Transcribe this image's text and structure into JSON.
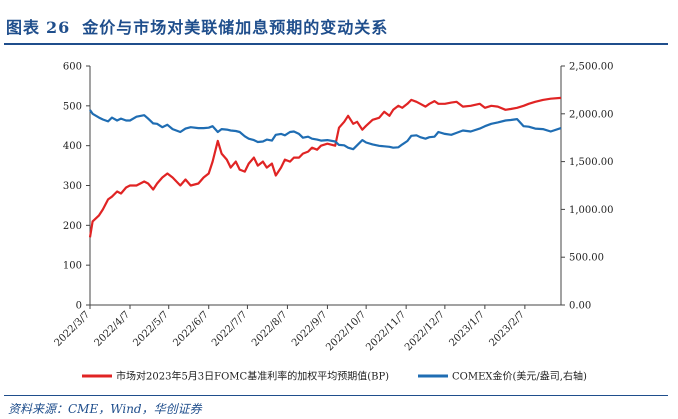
{
  "title": {
    "prefix": "图表",
    "number": "26",
    "text": "金价与市场对美联储加息预期的变动关系"
  },
  "source": "资料来源：CME，Wind，华创证券",
  "colors": {
    "brand": "#1f4e8c",
    "series_rate": "#e02424",
    "series_gold": "#1f6db3"
  },
  "chart_data": {
    "type": "line",
    "x_tick_labels": [
      "2022/3/7",
      "2022/4/7",
      "2022/5/7",
      "2022/6/7",
      "2022/7/7",
      "2022/8/7",
      "2022/9/7",
      "2022/10/7",
      "2022/11/7",
      "2022/12/7",
      "2023/1/7",
      "2023/2/7"
    ],
    "x_range": [
      "2022/3/7",
      "2023/3/7"
    ],
    "left_axis": {
      "min": 0,
      "max": 600,
      "ticks": [
        "0",
        "100",
        "200",
        "300",
        "400",
        "500",
        "600"
      ]
    },
    "right_axis": {
      "min": 0,
      "max": 2500,
      "ticks": [
        "0.00",
        "500.00",
        "1,000.00",
        "1,500.00",
        "2,000.00",
        "2,500.00"
      ]
    },
    "legend_position": "bottom",
    "grid": false,
    "series": [
      {
        "name": "市场对2023年5月3日FOMC基准利率的加权平均预期值(BP)",
        "axis": "left",
        "points": [
          [
            "2022/3/7",
            170
          ],
          [
            "2022/3/9",
            210
          ],
          [
            "2022/3/14",
            225
          ],
          [
            "2022/3/17",
            240
          ],
          [
            "2022/3/21",
            265
          ],
          [
            "2022/3/24",
            272
          ],
          [
            "2022/3/28",
            285
          ],
          [
            "2022/3/31",
            280
          ],
          [
            "2022/4/4",
            295
          ],
          [
            "2022/4/7",
            300
          ],
          [
            "2022/4/12",
            300
          ],
          [
            "2022/4/18",
            310
          ],
          [
            "2022/4/21",
            305
          ],
          [
            "2022/4/25",
            290
          ],
          [
            "2022/4/28",
            305
          ],
          [
            "2022/5/2",
            320
          ],
          [
            "2022/5/6",
            330
          ],
          [
            "2022/5/10",
            320
          ],
          [
            "2022/5/16",
            300
          ],
          [
            "2022/5/20",
            315
          ],
          [
            "2022/5/24",
            300
          ],
          [
            "2022/5/30",
            305
          ],
          [
            "2022/6/3",
            320
          ],
          [
            "2022/6/7",
            330
          ],
          [
            "2022/6/10",
            360
          ],
          [
            "2022/6/14",
            412
          ],
          [
            "2022/6/17",
            380
          ],
          [
            "2022/6/21",
            365
          ],
          [
            "2022/6/24",
            345
          ],
          [
            "2022/6/28",
            360
          ],
          [
            "2022/7/1",
            340
          ],
          [
            "2022/7/5",
            335
          ],
          [
            "2022/7/8",
            355
          ],
          [
            "2022/7/12",
            370
          ],
          [
            "2022/7/15",
            350
          ],
          [
            "2022/7/19",
            360
          ],
          [
            "2022/7/22",
            345
          ],
          [
            "2022/7/26",
            355
          ],
          [
            "2022/7/29",
            325
          ],
          [
            "2022/8/2",
            345
          ],
          [
            "2022/8/5",
            365
          ],
          [
            "2022/8/9",
            360
          ],
          [
            "2022/8/12",
            370
          ],
          [
            "2022/8/16",
            370
          ],
          [
            "2022/8/19",
            380
          ],
          [
            "2022/8/23",
            385
          ],
          [
            "2022/8/26",
            395
          ],
          [
            "2022/8/30",
            390
          ],
          [
            "2022/9/2",
            400
          ],
          [
            "2022/9/7",
            405
          ],
          [
            "2022/9/13",
            400
          ],
          [
            "2022/9/16",
            445
          ],
          [
            "2022/9/20",
            460
          ],
          [
            "2022/9/23",
            475
          ],
          [
            "2022/9/27",
            455
          ],
          [
            "2022/9/30",
            460
          ],
          [
            "2022/10/4",
            440
          ],
          [
            "2022/10/7",
            450
          ],
          [
            "2022/10/12",
            465
          ],
          [
            "2022/10/17",
            470
          ],
          [
            "2022/10/21",
            485
          ],
          [
            "2022/10/25",
            475
          ],
          [
            "2022/10/28",
            490
          ],
          [
            "2022/11/1",
            500
          ],
          [
            "2022/11/4",
            495
          ],
          [
            "2022/11/8",
            505
          ],
          [
            "2022/11/11",
            515
          ],
          [
            "2022/11/15",
            510
          ],
          [
            "2022/11/18",
            505
          ],
          [
            "2022/11/22",
            498
          ],
          [
            "2022/11/25",
            505
          ],
          [
            "2022/11/29",
            512
          ],
          [
            "2022/12/2",
            505
          ],
          [
            "2022/12/7",
            505
          ],
          [
            "2022/12/12",
            508
          ],
          [
            "2022/12/16",
            510
          ],
          [
            "2022/12/21",
            498
          ],
          [
            "2022/12/27",
            500
          ],
          [
            "2023/1/3",
            505
          ],
          [
            "2023/1/7",
            495
          ],
          [
            "2023/1/12",
            500
          ],
          [
            "2023/1/17",
            498
          ],
          [
            "2023/1/23",
            490
          ],
          [
            "2023/1/27",
            492
          ],
          [
            "2023/2/1",
            495
          ],
          [
            "2023/2/6",
            500
          ],
          [
            "2023/2/10",
            505
          ],
          [
            "2023/2/15",
            510
          ],
          [
            "2023/2/21",
            515
          ],
          [
            "2023/2/27",
            518
          ],
          [
            "2023/3/7",
            520
          ]
        ]
      },
      {
        "name": "COMEX金价(美元/盎司,右轴)",
        "axis": "right",
        "points": [
          [
            "2022/3/7",
            2040
          ],
          [
            "2022/3/9",
            2000
          ],
          [
            "2022/3/14",
            1960
          ],
          [
            "2022/3/17",
            1940
          ],
          [
            "2022/3/21",
            1920
          ],
          [
            "2022/3/24",
            1960
          ],
          [
            "2022/3/28",
            1930
          ],
          [
            "2022/3/31",
            1950
          ],
          [
            "2022/4/4",
            1930
          ],
          [
            "2022/4/7",
            1930
          ],
          [
            "2022/4/12",
            1970
          ],
          [
            "2022/4/18",
            1985
          ],
          [
            "2022/4/21",
            1950
          ],
          [
            "2022/4/25",
            1900
          ],
          [
            "2022/4/28",
            1895
          ],
          [
            "2022/5/2",
            1860
          ],
          [
            "2022/5/6",
            1885
          ],
          [
            "2022/5/10",
            1840
          ],
          [
            "2022/5/16",
            1810
          ],
          [
            "2022/5/20",
            1845
          ],
          [
            "2022/5/24",
            1860
          ],
          [
            "2022/5/30",
            1850
          ],
          [
            "2022/6/3",
            1850
          ],
          [
            "2022/6/7",
            1855
          ],
          [
            "2022/6/10",
            1870
          ],
          [
            "2022/6/14",
            1810
          ],
          [
            "2022/6/17",
            1840
          ],
          [
            "2022/6/21",
            1835
          ],
          [
            "2022/6/24",
            1825
          ],
          [
            "2022/6/28",
            1820
          ],
          [
            "2022/7/1",
            1810
          ],
          [
            "2022/7/5",
            1765
          ],
          [
            "2022/7/8",
            1740
          ],
          [
            "2022/7/12",
            1725
          ],
          [
            "2022/7/15",
            1705
          ],
          [
            "2022/7/19",
            1710
          ],
          [
            "2022/7/22",
            1730
          ],
          [
            "2022/7/26",
            1720
          ],
          [
            "2022/7/29",
            1780
          ],
          [
            "2022/8/2",
            1790
          ],
          [
            "2022/8/5",
            1775
          ],
          [
            "2022/8/9",
            1810
          ],
          [
            "2022/8/12",
            1815
          ],
          [
            "2022/8/16",
            1790
          ],
          [
            "2022/8/19",
            1750
          ],
          [
            "2022/8/23",
            1760
          ],
          [
            "2022/8/26",
            1740
          ],
          [
            "2022/8/30",
            1730
          ],
          [
            "2022/9/2",
            1720
          ],
          [
            "2022/9/7",
            1725
          ],
          [
            "2022/9/13",
            1710
          ],
          [
            "2022/9/16",
            1675
          ],
          [
            "2022/9/20",
            1670
          ],
          [
            "2022/9/23",
            1645
          ],
          [
            "2022/9/27",
            1630
          ],
          [
            "2022/9/30",
            1670
          ],
          [
            "2022/10/4",
            1725
          ],
          [
            "2022/10/7",
            1700
          ],
          [
            "2022/10/12",
            1680
          ],
          [
            "2022/10/17",
            1665
          ],
          [
            "2022/10/21",
            1660
          ],
          [
            "2022/10/25",
            1655
          ],
          [
            "2022/10/28",
            1645
          ],
          [
            "2022/11/1",
            1650
          ],
          [
            "2022/11/4",
            1680
          ],
          [
            "2022/11/8",
            1715
          ],
          [
            "2022/11/11",
            1770
          ],
          [
            "2022/11/15",
            1775
          ],
          [
            "2022/11/18",
            1755
          ],
          [
            "2022/11/22",
            1740
          ],
          [
            "2022/11/25",
            1755
          ],
          [
            "2022/11/29",
            1760
          ],
          [
            "2022/12/2",
            1810
          ],
          [
            "2022/12/7",
            1790
          ],
          [
            "2022/12/12",
            1780
          ],
          [
            "2022/12/16",
            1800
          ],
          [
            "2022/12/21",
            1825
          ],
          [
            "2022/12/27",
            1815
          ],
          [
            "2023/1/3",
            1845
          ],
          [
            "2023/1/7",
            1870
          ],
          [
            "2023/1/12",
            1895
          ],
          [
            "2023/1/17",
            1910
          ],
          [
            "2023/1/23",
            1930
          ],
          [
            "2023/1/27",
            1935
          ],
          [
            "2023/2/1",
            1945
          ],
          [
            "2023/2/6",
            1870
          ],
          [
            "2023/2/10",
            1865
          ],
          [
            "2023/2/15",
            1845
          ],
          [
            "2023/2/21",
            1840
          ],
          [
            "2023/2/27",
            1815
          ],
          [
            "2023/3/7",
            1850
          ]
        ]
      }
    ]
  }
}
